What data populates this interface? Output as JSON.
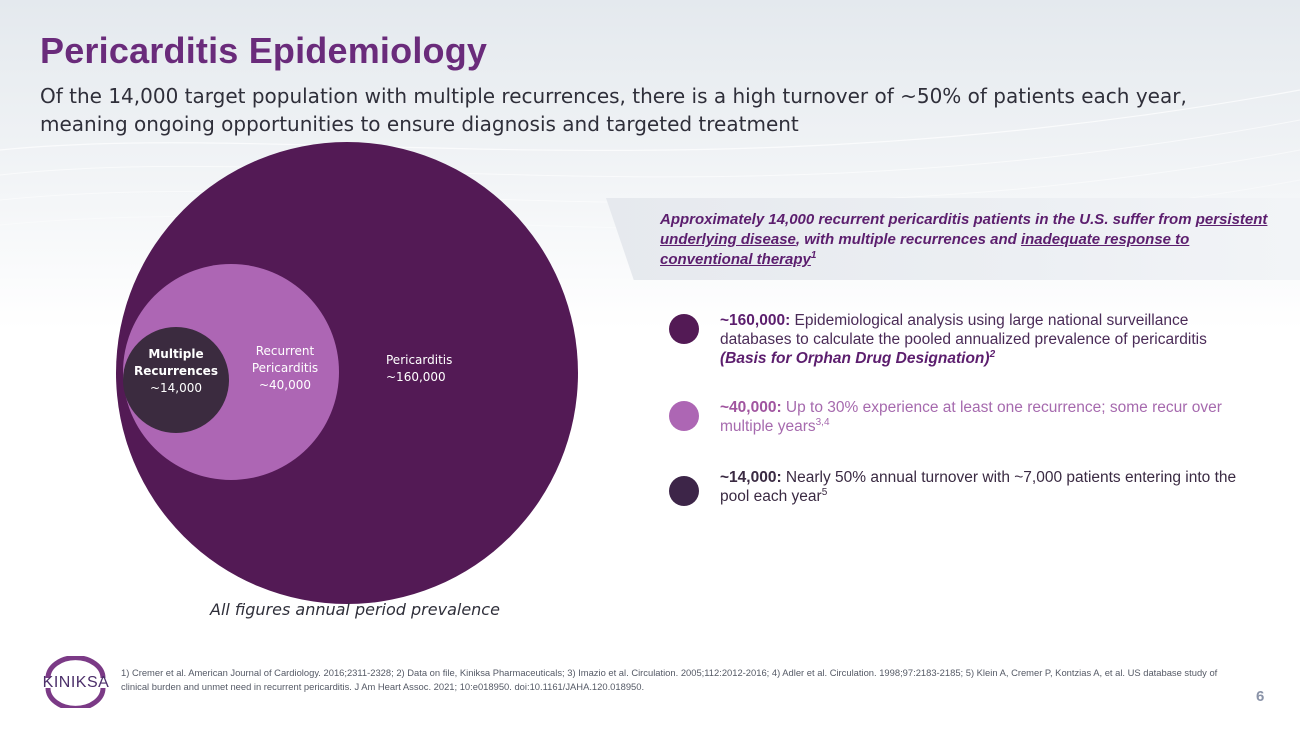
{
  "header": {
    "title": "Pericarditis Epidemiology",
    "subtitle": "Of the 14,000 target population with multiple recurrences, there is a high turnover of ~50% of patients each year, meaning ongoing opportunities to ensure diagnosis and targeted treatment"
  },
  "diagram": {
    "circles": [
      {
        "label": "Pericarditis",
        "value": "~160,000",
        "color": "#531a55"
      },
      {
        "label_line1": "Recurrent",
        "label_line2": "Pericarditis",
        "value": "~40,000",
        "color": "#ad66b4"
      },
      {
        "label_line1": "Multiple",
        "label_line2": "Recurrences",
        "value": "~14,000",
        "color": "#3b2b3f"
      }
    ],
    "caption": "All figures annual period prevalence"
  },
  "callout": {
    "part1": "Approximately 14,000 recurrent pericarditis patients in the U.S. suffer from ",
    "underline1": "persistent underlying disease",
    "part2": ", with multiple recurrences and ",
    "underline2": "inadequate response to conventional therapy",
    "sup": "1"
  },
  "stats": [
    {
      "number": "~160,000:",
      "text": " Epidemiological analysis using large national surveillance databases to calculate the pooled annualized prevalence of pericarditis",
      "basis": "(Basis for Orphan Drug Designation)",
      "sup": "2",
      "color": "#531a55"
    },
    {
      "number": "~40,000:",
      "text": " Up to 30% experience at least one recurrence; some recur over multiple years",
      "sup": "3,4",
      "color": "#ad66b4"
    },
    {
      "number": "~14,000:",
      "text": " Nearly 50% annual turnover with ~7,000 patients entering into the pool each year",
      "sup": "5",
      "color": "#3d2548"
    }
  ],
  "footer": {
    "logo_text": "KINIKSA",
    "references": "1) Cremer et al. American Journal of Cardiology. 2016;2311-2328; 2) Data on file, Kiniksa Pharmaceuticals; 3) Imazio et al. Circulation. 2005;112:2012-2016; 4) Adler et al. Circulation. 1998;97:2183-2185; 5) Klein A, Cremer P, Kontzias A, et al. US database study of clinical burden and unmet need in recurrent pericarditis. J Am Heart Assoc. 2021; 10:e018950. doi:10.1161/JAHA.120.018950.",
    "page_number": "6"
  }
}
